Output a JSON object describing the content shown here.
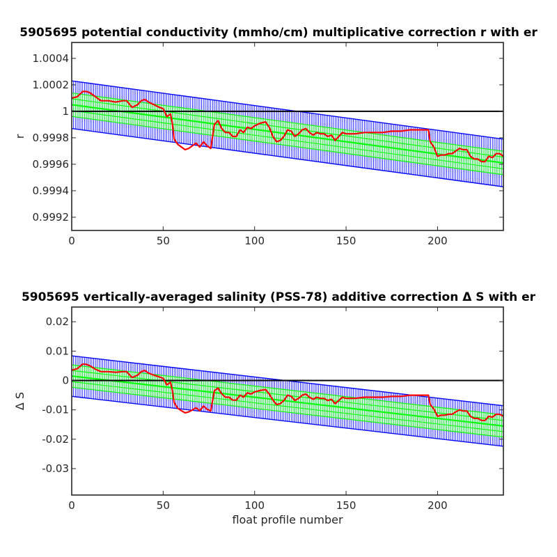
{
  "chart_data": [
    {
      "type": "line",
      "title": "5905695 potential conductivity (mmho/cm) multiplicative correction r with er",
      "xlabel": "",
      "ylabel": "r",
      "xlim": [
        0,
        236
      ],
      "ylim": [
        0.9991,
        1.00052
      ],
      "xticks": [
        "0",
        "50",
        "100",
        "150",
        "200"
      ],
      "yticks": [
        "0.9992",
        "0.9994",
        "0.9996",
        "0.9998",
        "1",
        "1.0002",
        "1.0004"
      ],
      "grid": false,
      "reference_line": 1,
      "fit_errors": {
        "center_start": 1.00005,
        "center_end": 0.99961,
        "inner_half_width": 8.85e-05,
        "outer_half_width": 0.00018
      },
      "series": [
        {
          "color": "#ff0000",
          "x": [
            0,
            3,
            6,
            8,
            10,
            13,
            16,
            20,
            24,
            28,
            30,
            33,
            36,
            38,
            40,
            42,
            45,
            48,
            50,
            52,
            54,
            55,
            56,
            58,
            60,
            62,
            64,
            66,
            68,
            70,
            72,
            74,
            76,
            78,
            80,
            82,
            84,
            86,
            88,
            90,
            92,
            94,
            96,
            98,
            100,
            103,
            106,
            108,
            110,
            112,
            114,
            116,
            118,
            120,
            122,
            124,
            126,
            128,
            130,
            132,
            134,
            136,
            138,
            140,
            142,
            144,
            146,
            148,
            150,
            155,
            160,
            165,
            170,
            175,
            180,
            185,
            190,
            195,
            196,
            198,
            200,
            202,
            204,
            206,
            208,
            210,
            212,
            214,
            216,
            218,
            220,
            222,
            224,
            226,
            228,
            230,
            232,
            234,
            236
          ],
          "y": [
            1.0001,
            1.00011,
            1.00015,
            1.00015,
            1.00014,
            1.00011,
            1.00008,
            1.00008,
            1.00007,
            1.00008,
            1.00008,
            1.00003,
            1.00005,
            1.00008,
            1.00009,
            1.00007,
            1.00005,
            1.00003,
            1.00002,
            0.99996,
            0.99998,
            0.99991,
            0.99979,
            0.99975,
            0.99973,
            0.99971,
            0.99972,
            0.99974,
            0.99976,
            0.99973,
            0.99977,
            0.99974,
            0.99972,
            0.9999,
            0.99993,
            0.99987,
            0.99984,
            0.99984,
            0.99981,
            0.99981,
            0.99986,
            0.99984,
            0.99988,
            0.99987,
            0.99989,
            0.99991,
            0.99992,
            0.99988,
            0.99981,
            0.99977,
            0.99978,
            0.99981,
            0.99986,
            0.99985,
            0.99981,
            0.99983,
            0.99986,
            0.99987,
            0.99984,
            0.99982,
            0.99984,
            0.99983,
            0.99983,
            0.99981,
            0.99982,
            0.99978,
            0.99981,
            0.99984,
            0.99983,
            0.99983,
            0.99984,
            0.99984,
            0.99984,
            0.99985,
            0.99985,
            0.99986,
            0.99986,
            0.99986,
            0.99977,
            0.99973,
            0.99966,
            0.99967,
            0.99967,
            0.99968,
            0.99968,
            0.9997,
            0.99972,
            0.99971,
            0.99971,
            0.99966,
            0.99964,
            0.99964,
            0.99962,
            0.99962,
            0.99966,
            0.99965,
            0.99968,
            0.99968,
            0.99966
          ]
        }
      ]
    },
    {
      "type": "line",
      "title": "5905695 vertically-averaged salinity (PSS-78) additive correction Δ S with er",
      "xlabel": "float profile number",
      "ylabel": "Δ S",
      "xlim": [
        0,
        236
      ],
      "ylim": [
        -0.039,
        0.025
      ],
      "xticks": [
        "0",
        "50",
        "100",
        "150",
        "200"
      ],
      "yticks": [
        "-0.03",
        "-0.02",
        "-0.01",
        "0",
        "0.01",
        "0.02"
      ],
      "grid": false,
      "reference_line": 0,
      "fit_errors": {
        "center_start": 0.0015,
        "center_end": -0.0155,
        "inner_half_width": 0.0038,
        "outer_half_width": 0.0069
      },
      "series": [
        {
          "color": "#ff0000",
          "x": [
            0,
            3,
            6,
            8,
            10,
            13,
            16,
            20,
            24,
            28,
            30,
            33,
            36,
            38,
            40,
            42,
            45,
            48,
            50,
            52,
            54,
            55,
            56,
            58,
            60,
            62,
            64,
            66,
            68,
            70,
            72,
            74,
            76,
            78,
            80,
            82,
            84,
            86,
            88,
            90,
            92,
            94,
            96,
            98,
            100,
            103,
            106,
            108,
            110,
            112,
            114,
            116,
            118,
            120,
            122,
            124,
            126,
            128,
            130,
            132,
            134,
            136,
            138,
            140,
            142,
            144,
            146,
            148,
            150,
            155,
            160,
            165,
            170,
            175,
            180,
            185,
            190,
            195,
            196,
            198,
            200,
            202,
            204,
            206,
            208,
            210,
            212,
            214,
            216,
            218,
            220,
            222,
            224,
            226,
            228,
            230,
            232,
            234,
            236
          ],
          "y": [
            0.0035,
            0.004,
            0.0056,
            0.0055,
            0.005,
            0.0038,
            0.003,
            0.003,
            0.0028,
            0.003,
            0.003,
            0.001,
            0.0018,
            0.003,
            0.0034,
            0.0025,
            0.0018,
            0.0012,
            0.0007,
            -0.0015,
            -0.0006,
            -0.0033,
            -0.0075,
            -0.0095,
            -0.0103,
            -0.011,
            -0.0107,
            -0.01,
            -0.0093,
            -0.0103,
            -0.0087,
            -0.0098,
            -0.0104,
            -0.0035,
            -0.0026,
            -0.0045,
            -0.0057,
            -0.0057,
            -0.0067,
            -0.0067,
            -0.005,
            -0.0057,
            -0.0042,
            -0.0046,
            -0.0039,
            -0.0034,
            -0.0031,
            -0.0046,
            -0.0067,
            -0.0082,
            -0.0079,
            -0.0068,
            -0.005,
            -0.0054,
            -0.0068,
            -0.0061,
            -0.005,
            -0.0046,
            -0.0057,
            -0.0064,
            -0.0057,
            -0.0061,
            -0.0061,
            -0.0068,
            -0.0064,
            -0.0079,
            -0.0068,
            -0.0057,
            -0.0061,
            -0.0061,
            -0.0057,
            -0.0057,
            -0.0057,
            -0.0054,
            -0.0054,
            -0.005,
            -0.005,
            -0.005,
            -0.0082,
            -0.0097,
            -0.0122,
            -0.0118,
            -0.0118,
            -0.0115,
            -0.0115,
            -0.0107,
            -0.01,
            -0.0104,
            -0.0104,
            -0.0122,
            -0.0129,
            -0.0129,
            -0.0136,
            -0.0136,
            -0.0122,
            -0.0125,
            -0.0115,
            -0.0115,
            -0.0122
          ]
        }
      ]
    }
  ]
}
